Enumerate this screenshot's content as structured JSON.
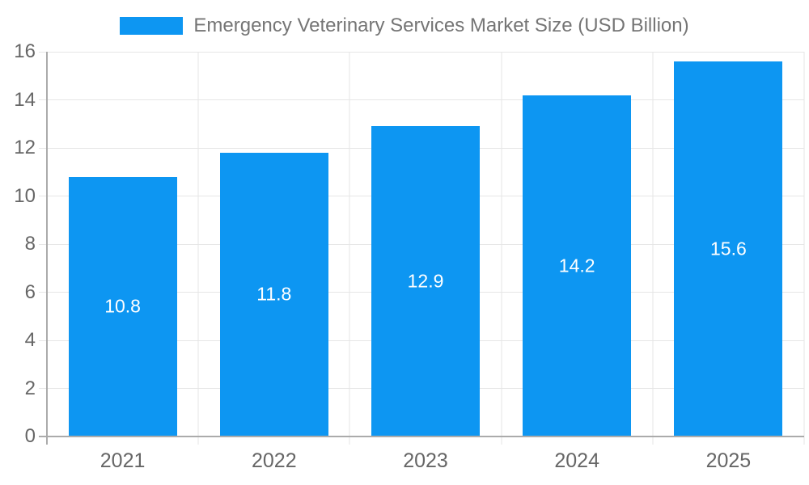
{
  "chart_data": {
    "type": "bar",
    "title": "Emergency Veterinary Services Market Size (USD Billion)",
    "categories": [
      "2021",
      "2022",
      "2023",
      "2024",
      "2025"
    ],
    "values": [
      10.8,
      11.8,
      12.9,
      14.2,
      15.6
    ],
    "value_labels": [
      "10.8",
      "11.8",
      "12.9",
      "14.2",
      "15.6"
    ],
    "xlabel": "",
    "ylabel": "",
    "ylim": [
      0,
      16
    ],
    "ytick_step": 2,
    "ytick_labels": [
      "0",
      "2",
      "4",
      "6",
      "8",
      "10",
      "12",
      "14",
      "16"
    ],
    "grid": true,
    "legend_position": "top",
    "colors": {
      "bar": "#0d96f2",
      "bar_value_text": "#ffffff",
      "legend_text": "#757575",
      "axis_tick_text": "#666666",
      "gridline": "#e6e6e6",
      "axis_line": "#ababab",
      "background": "#ffffff"
    }
  }
}
